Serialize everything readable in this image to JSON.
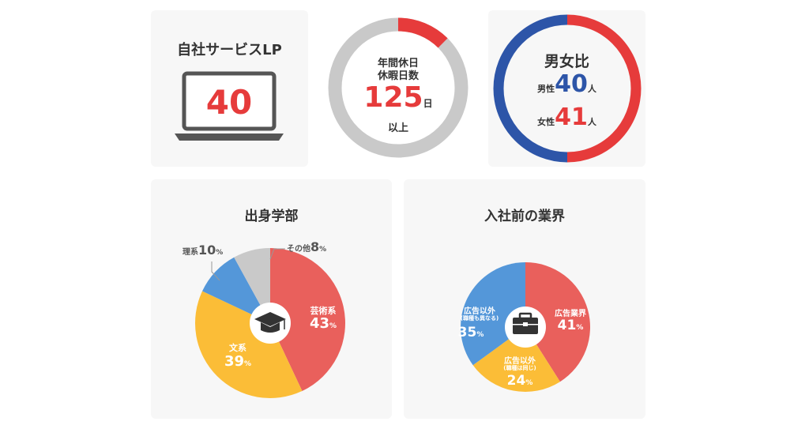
{
  "colors": {
    "red": "#e63b3b",
    "blue": "#2d55a8",
    "gray_ring": "#c9c9c9",
    "dark": "#333333",
    "pie_red": "#e9605c",
    "pie_yellow": "#fbbd37",
    "pie_blue": "#5497d9",
    "pie_gray": "#c9c9c9"
  },
  "card_lp": {
    "title": "自社サービスLP",
    "value": "40",
    "icon": "laptop-icon"
  },
  "card_holiday": {
    "label_line1": "年間休日",
    "label_line2": "休暇日数",
    "value": "125",
    "unit": "日",
    "suffix": "以上",
    "ring_fraction": 0.125
  },
  "card_gender": {
    "title": "男女比",
    "male_label": "男性",
    "male_value": "40",
    "female_label": "女性",
    "female_value": "41",
    "unit": "人"
  },
  "chart_data": [
    {
      "type": "pie",
      "title": "出身学部",
      "icon": "graduation-cap-icon",
      "slices": [
        {
          "name": "芸術系",
          "value": 43,
          "color": "#e9605c"
        },
        {
          "name": "文系",
          "value": 39,
          "color": "#fbbd37"
        },
        {
          "name": "理系",
          "value": 10,
          "color": "#5497d9"
        },
        {
          "name": "その他",
          "value": 8,
          "color": "#c9c9c9"
        }
      ],
      "unit": "%"
    },
    {
      "type": "pie",
      "title": "入社前の業界",
      "icon": "briefcase-icon",
      "slices": [
        {
          "name": "広告業界",
          "note": "",
          "value": 41,
          "color": "#e9605c"
        },
        {
          "name": "広告以外",
          "note": "(職種は同じ)",
          "value": 24,
          "color": "#fbbd37"
        },
        {
          "name": "広告以外",
          "note": "(職種も異なる)",
          "value": 35,
          "color": "#5497d9"
        }
      ],
      "unit": "%"
    }
  ]
}
